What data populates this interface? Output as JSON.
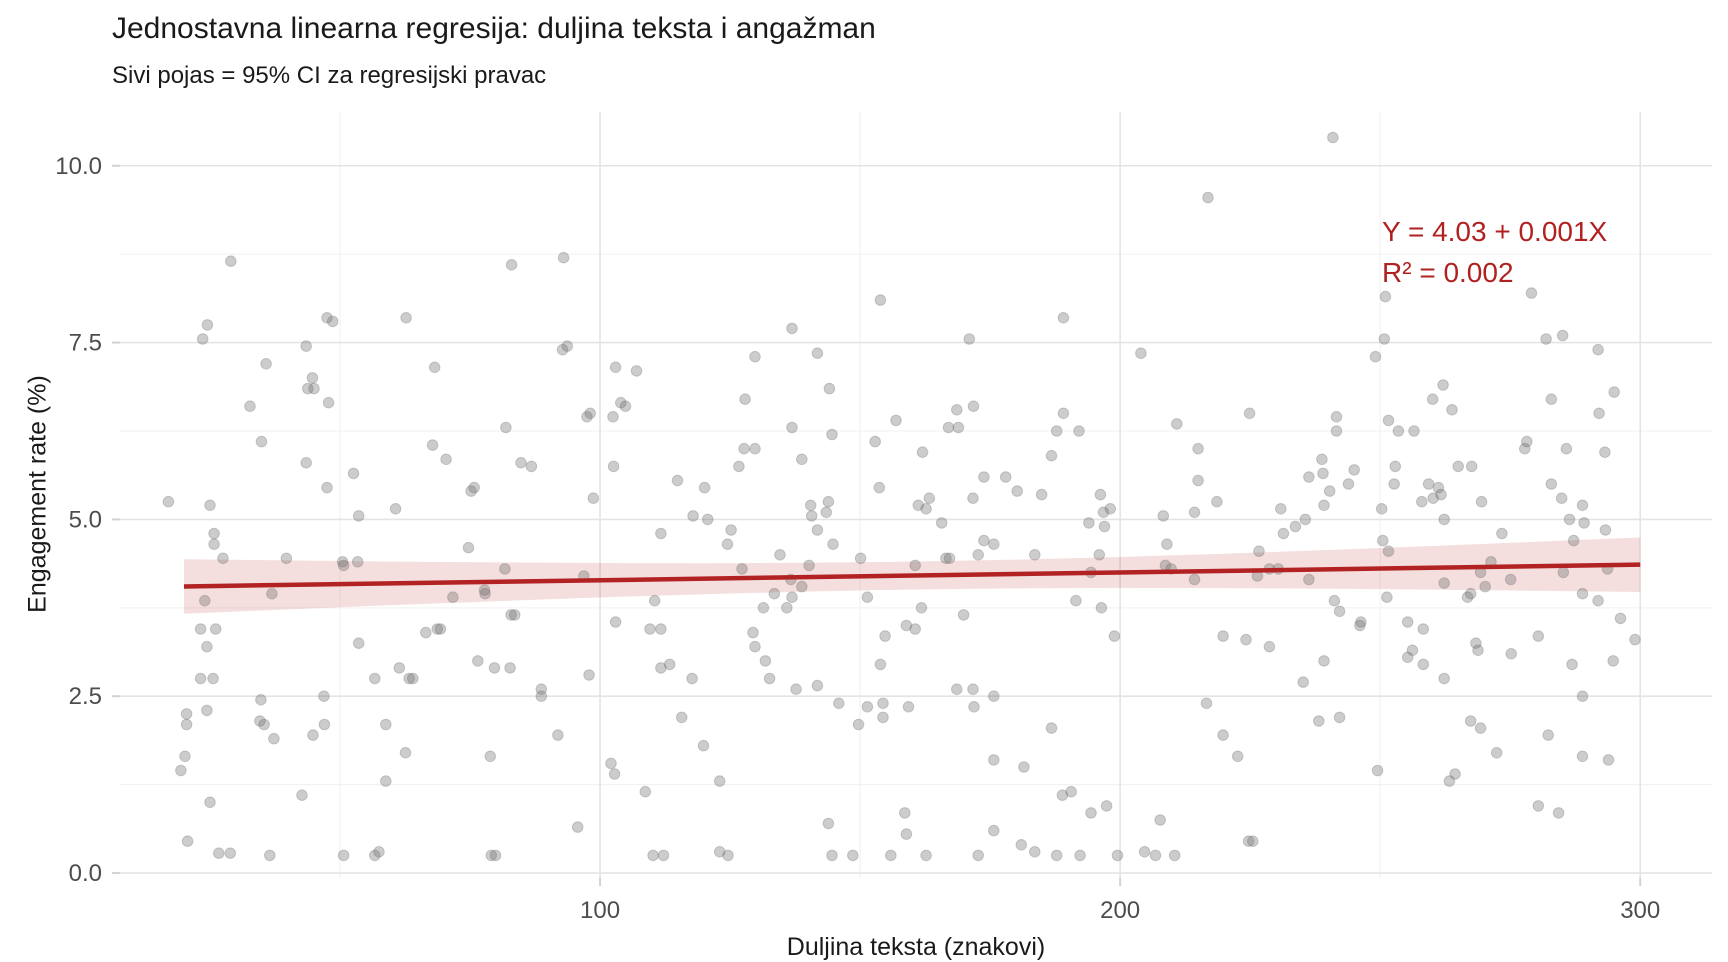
{
  "title": "Jednostavna linearna regresija: duljina teksta i angažman",
  "subtitle": "Sivi pojas = 95% CI za regresijski pravac",
  "annotation": {
    "line1": "Y = 4.03 + 0.001X",
    "line2": "R² = 0.002",
    "color": "#B0211F"
  },
  "axes": {
    "x": {
      "label": "Duljina teksta (znakovi)",
      "ticks": [
        100,
        200,
        300
      ],
      "tick_labels": [
        "100",
        "200",
        "300"
      ],
      "minor": [
        50,
        150,
        250
      ],
      "range": [
        7.7,
        313.8
      ]
    },
    "y": {
      "label": "Engagement rate (%)",
      "ticks": [
        0,
        2.5,
        5,
        7.5,
        10
      ],
      "tick_labels": [
        "0.0",
        "2.5",
        "5.0",
        "7.5",
        "10.0"
      ],
      "minor": [
        1.25,
        3.75,
        6.25,
        8.75
      ],
      "range": [
        -0.07,
        10.76
      ]
    }
  },
  "style": {
    "point_fill": "rgba(110,110,110,0.35)",
    "point_stroke": "rgba(105,105,105,0.3)",
    "point_radius": 5.3,
    "grid_major": "#E4E4E4",
    "grid_minor": "#F0F0F0",
    "tick_color": "#D2D2D2",
    "axis_text_color": "#4D4D4D",
    "axis_text_size": 24
  },
  "chart_data": {
    "type": "scatter",
    "title": "Jednostavna linearna regresija: duljina teksta i angažman",
    "subtitle": "Sivi pojas = 95% CI za regresijski pravac",
    "xlabel": "Duljina teksta (znakovi)",
    "ylabel": "Engagement rate (%)",
    "xlim": [
      0,
      310
    ],
    "ylim": [
      0,
      10.5
    ],
    "grid": true,
    "legend": false,
    "trend": {
      "type": "linear",
      "intercept": 4.03,
      "slope": 0.0011,
      "x_start": 20,
      "x_end": 300,
      "color": "#B22222",
      "width": 4.5,
      "equation": "Y = 4.03 + 0.001X",
      "r_squared": 0.002
    },
    "ci_band": {
      "label": "95% CI",
      "fill": "rgba(178,34,34,0.15)",
      "x": [
        20,
        40,
        60,
        80,
        100,
        120,
        140,
        160,
        180,
        200,
        220,
        240,
        260,
        280,
        300
      ],
      "halfwidth": [
        0.386,
        0.346,
        0.308,
        0.274,
        0.243,
        0.219,
        0.203,
        0.197,
        0.203,
        0.219,
        0.243,
        0.274,
        0.308,
        0.346,
        0.386
      ]
    },
    "points": [
      [
        29,
        8.65
      ],
      [
        83,
        8.6
      ],
      [
        93,
        8.7
      ],
      [
        24.5,
        7.75
      ],
      [
        23.6,
        7.55
      ],
      [
        47.5,
        7.85
      ],
      [
        48.6,
        7.8
      ],
      [
        43.5,
        7.45
      ],
      [
        62.7,
        7.85
      ],
      [
        68.2,
        7.15
      ],
      [
        44.7,
        7.0
      ],
      [
        43.8,
        6.85
      ],
      [
        45,
        6.85
      ],
      [
        35.8,
        7.2
      ],
      [
        47.8,
        6.65
      ],
      [
        32.7,
        6.6
      ],
      [
        34.9,
        6.1
      ],
      [
        43.5,
        5.8
      ],
      [
        52.6,
        5.65
      ],
      [
        67.8,
        6.05
      ],
      [
        70.4,
        5.85
      ],
      [
        81.9,
        6.3
      ],
      [
        84.8,
        5.8
      ],
      [
        86.8,
        5.75
      ],
      [
        92.8,
        7.4
      ],
      [
        93.7,
        7.45
      ],
      [
        97.5,
        6.45
      ],
      [
        98.1,
        6.5
      ],
      [
        103,
        7.15
      ],
      [
        104,
        6.65
      ],
      [
        104.9,
        6.6
      ],
      [
        102.5,
        6.45
      ],
      [
        102.6,
        5.75
      ],
      [
        153.9,
        8.1
      ],
      [
        136.9,
        7.7
      ],
      [
        129.8,
        7.3
      ],
      [
        141.8,
        7.35
      ],
      [
        189.1,
        7.85
      ],
      [
        171,
        7.55
      ],
      [
        204,
        7.35
      ],
      [
        107,
        7.1
      ],
      [
        144.1,
        6.85
      ],
      [
        127.9,
        6.7
      ],
      [
        168.6,
        6.55
      ],
      [
        171.8,
        6.6
      ],
      [
        156.9,
        6.4
      ],
      [
        167,
        6.3
      ],
      [
        168.9,
        6.3
      ],
      [
        189.1,
        6.5
      ],
      [
        187.8,
        6.25
      ],
      [
        192.1,
        6.25
      ],
      [
        136.9,
        6.3
      ],
      [
        144.6,
        6.2
      ],
      [
        152.9,
        6.1
      ],
      [
        127.7,
        6.0
      ],
      [
        129.8,
        6.0
      ],
      [
        138.8,
        5.85
      ],
      [
        126.7,
        5.75
      ],
      [
        162,
        5.95
      ],
      [
        186.8,
        5.9
      ],
      [
        114.9,
        5.55
      ],
      [
        153.7,
        5.45
      ],
      [
        163.3,
        5.3
      ],
      [
        161.2,
        5.2
      ],
      [
        162.7,
        5.15
      ],
      [
        173.8,
        5.6
      ],
      [
        178,
        5.6
      ],
      [
        184.9,
        5.35
      ],
      [
        196.2,
        5.35
      ],
      [
        143.9,
        5.25
      ],
      [
        140.7,
        5.05
      ],
      [
        117.9,
        5.05
      ],
      [
        120.7,
        5.0
      ],
      [
        165.7,
        4.95
      ],
      [
        208.3,
        5.05
      ],
      [
        240.9,
        10.4
      ],
      [
        216.9,
        9.55
      ],
      [
        251,
        8.15
      ],
      [
        279.1,
        8.2
      ],
      [
        250.8,
        7.55
      ],
      [
        281.9,
        7.55
      ],
      [
        285.1,
        7.6
      ],
      [
        249.1,
        7.3
      ],
      [
        291.9,
        7.4
      ],
      [
        262.1,
        6.9
      ],
      [
        260.1,
        6.7
      ],
      [
        263.8,
        6.55
      ],
      [
        282.9,
        6.7
      ],
      [
        224.9,
        6.5
      ],
      [
        210.9,
        6.35
      ],
      [
        251.6,
        6.4
      ],
      [
        241.6,
        6.45
      ],
      [
        241.6,
        6.25
      ],
      [
        253.5,
        6.25
      ],
      [
        256.5,
        6.25
      ],
      [
        292.1,
        6.5
      ],
      [
        278.2,
        6.1
      ],
      [
        277.8,
        6.0
      ],
      [
        215,
        6.0
      ],
      [
        293.2,
        5.95
      ],
      [
        238.8,
        5.85
      ],
      [
        239,
        5.65
      ],
      [
        236.3,
        5.6
      ],
      [
        245,
        5.7
      ],
      [
        243.9,
        5.5
      ],
      [
        215,
        5.55
      ],
      [
        218.6,
        5.25
      ],
      [
        252.9,
        5.75
      ],
      [
        252.7,
        5.5
      ],
      [
        265,
        5.75
      ],
      [
        267.6,
        5.75
      ],
      [
        259.3,
        5.5
      ],
      [
        261.2,
        5.45
      ],
      [
        261.7,
        5.35
      ],
      [
        269.5,
        5.25
      ],
      [
        258,
        5.25
      ],
      [
        260.2,
        5.3
      ],
      [
        282.9,
        5.5
      ],
      [
        284.9,
        5.3
      ],
      [
        288.9,
        5.2
      ],
      [
        230.9,
        5.15
      ],
      [
        239.2,
        5.2
      ],
      [
        250.3,
        5.15
      ],
      [
        295,
        6.8
      ],
      [
        285.8,
        6.0
      ],
      [
        47.5,
        5.45
      ],
      [
        75.2,
        5.4
      ],
      [
        75.8,
        5.45
      ],
      [
        98.7,
        5.3
      ],
      [
        60.7,
        5.15
      ],
      [
        53.6,
        5.05
      ],
      [
        25.8,
        4.8
      ],
      [
        25.8,
        4.65
      ],
      [
        111.7,
        4.8
      ],
      [
        74.7,
        4.6
      ],
      [
        27.5,
        4.45
      ],
      [
        39.7,
        4.45
      ],
      [
        50.5,
        4.4
      ],
      [
        53.4,
        4.4
      ],
      [
        50.7,
        4.35
      ],
      [
        81.7,
        4.3
      ],
      [
        96.9,
        4.2
      ],
      [
        36.9,
        3.95
      ],
      [
        71.7,
        3.9
      ],
      [
        77.8,
        4.0
      ],
      [
        77.9,
        3.95
      ],
      [
        82.9,
        3.65
      ],
      [
        83.6,
        3.65
      ],
      [
        103,
        3.55
      ],
      [
        111.7,
        3.45
      ],
      [
        66.5,
        3.4
      ],
      [
        68.7,
        3.45
      ],
      [
        69.3,
        3.45
      ],
      [
        53.6,
        3.25
      ],
      [
        88.7,
        2.6
      ],
      [
        88.7,
        2.5
      ],
      [
        24.4,
        3.2
      ],
      [
        23.2,
        2.75
      ],
      [
        25.6,
        2.75
      ],
      [
        56.7,
        2.75
      ],
      [
        61.4,
        2.9
      ],
      [
        63.3,
        2.75
      ],
      [
        64,
        2.75
      ],
      [
        76.5,
        3.0
      ],
      [
        79.7,
        2.9
      ],
      [
        82.7,
        2.9
      ],
      [
        97.9,
        2.8
      ],
      [
        113.4,
        2.95
      ],
      [
        34.8,
        2.45
      ],
      [
        46.9,
        2.5
      ],
      [
        20.5,
        2.25
      ],
      [
        20.5,
        2.1
      ],
      [
        24.4,
        2.3
      ],
      [
        34.6,
        2.15
      ],
      [
        35.4,
        2.1
      ],
      [
        37.3,
        1.9
      ],
      [
        44.8,
        1.95
      ],
      [
        47,
        2.1
      ],
      [
        58.8,
        2.1
      ],
      [
        62.6,
        1.7
      ],
      [
        58.8,
        1.3
      ],
      [
        78.9,
        1.65
      ],
      [
        91.9,
        1.95
      ],
      [
        102.1,
        1.55
      ],
      [
        102.8,
        1.4
      ],
      [
        42.7,
        1.1
      ],
      [
        108.7,
        1.15
      ],
      [
        95.7,
        0.65
      ],
      [
        20.7,
        0.45
      ],
      [
        26.7,
        0.28
      ],
      [
        28.9,
        0.28
      ],
      [
        36.5,
        0.25
      ],
      [
        50.7,
        0.25
      ],
      [
        56.7,
        0.25
      ],
      [
        57.5,
        0.3
      ],
      [
        79.1,
        0.25
      ],
      [
        79.9,
        0.25
      ],
      [
        112.2,
        0.25
      ],
      [
        120.1,
        5.45
      ],
      [
        140.5,
        5.2
      ],
      [
        143.5,
        5.1
      ],
      [
        171.7,
        5.3
      ],
      [
        180.2,
        5.4
      ],
      [
        125.2,
        4.85
      ],
      [
        124.5,
        4.65
      ],
      [
        141.8,
        4.85
      ],
      [
        144.8,
        4.65
      ],
      [
        173.8,
        4.7
      ],
      [
        175.7,
        4.65
      ],
      [
        194,
        4.95
      ],
      [
        196.8,
        5.1
      ],
      [
        198.1,
        5.15
      ],
      [
        197,
        4.9
      ],
      [
        209,
        4.65
      ],
      [
        134.6,
        4.5
      ],
      [
        150.1,
        4.45
      ],
      [
        166.5,
        4.45
      ],
      [
        167.2,
        4.45
      ],
      [
        172.7,
        4.5
      ],
      [
        183.6,
        4.5
      ],
      [
        196,
        4.5
      ],
      [
        127.3,
        4.3
      ],
      [
        140.2,
        4.35
      ],
      [
        160.6,
        4.35
      ],
      [
        194.4,
        4.25
      ],
      [
        208.7,
        4.35
      ],
      [
        209.8,
        4.3
      ],
      [
        136.7,
        4.15
      ],
      [
        138.8,
        4.05
      ],
      [
        133.5,
        3.95
      ],
      [
        136.9,
        3.9
      ],
      [
        135.9,
        3.75
      ],
      [
        131.4,
        3.75
      ],
      [
        151.4,
        3.9
      ],
      [
        110.5,
        3.85
      ],
      [
        161.8,
        3.75
      ],
      [
        169.9,
        3.65
      ],
      [
        191.5,
        3.85
      ],
      [
        196.4,
        3.75
      ],
      [
        198.9,
        3.35
      ],
      [
        109.6,
        3.45
      ],
      [
        129.4,
        3.4
      ],
      [
        129.8,
        3.2
      ],
      [
        131.8,
        3.0
      ],
      [
        158.9,
        3.5
      ],
      [
        160.6,
        3.45
      ],
      [
        154.8,
        3.35
      ],
      [
        153.9,
        2.95
      ],
      [
        111.7,
        2.9
      ],
      [
        117.7,
        2.75
      ],
      [
        132.6,
        2.75
      ],
      [
        137.7,
        2.6
      ],
      [
        141.8,
        2.65
      ],
      [
        145.9,
        2.4
      ],
      [
        151.4,
        2.35
      ],
      [
        154.4,
        2.4
      ],
      [
        154.4,
        2.2
      ],
      [
        159.3,
        2.35
      ],
      [
        149.7,
        2.1
      ],
      [
        168.6,
        2.6
      ],
      [
        171.7,
        2.6
      ],
      [
        171.9,
        2.35
      ],
      [
        175.7,
        2.5
      ],
      [
        115.7,
        2.2
      ],
      [
        119.9,
        1.8
      ],
      [
        123,
        1.3
      ],
      [
        186.8,
        2.05
      ],
      [
        175.7,
        1.6
      ],
      [
        181.5,
        1.5
      ],
      [
        188.9,
        1.1
      ],
      [
        190.6,
        1.15
      ],
      [
        194.4,
        0.85
      ],
      [
        197.4,
        0.95
      ],
      [
        158.6,
        0.85
      ],
      [
        158.9,
        0.55
      ],
      [
        143.9,
        0.7
      ],
      [
        175.7,
        0.6
      ],
      [
        181,
        0.4
      ],
      [
        183.6,
        0.3
      ],
      [
        123,
        0.3
      ],
      [
        124.6,
        0.25
      ],
      [
        110.2,
        0.25
      ],
      [
        144.6,
        0.25
      ],
      [
        148.6,
        0.25
      ],
      [
        155.9,
        0.25
      ],
      [
        162.7,
        0.25
      ],
      [
        172.7,
        0.25
      ],
      [
        187.8,
        0.25
      ],
      [
        192.3,
        0.25
      ],
      [
        199.5,
        0.25
      ],
      [
        204.7,
        0.3
      ],
      [
        206.8,
        0.25
      ],
      [
        210.5,
        0.25
      ],
      [
        207.7,
        0.75
      ],
      [
        240.3,
        5.4
      ],
      [
        214.3,
        5.1
      ],
      [
        235.6,
        5.0
      ],
      [
        233.7,
        4.9
      ],
      [
        231.4,
        4.8
      ],
      [
        262.3,
        5.0
      ],
      [
        286.4,
        5.0
      ],
      [
        289.2,
        4.95
      ],
      [
        293.3,
        4.85
      ],
      [
        273.4,
        4.8
      ],
      [
        287.2,
        4.7
      ],
      [
        250.5,
        4.7
      ],
      [
        251.6,
        4.55
      ],
      [
        226.7,
        4.55
      ],
      [
        226.4,
        4.2
      ],
      [
        228.7,
        4.3
      ],
      [
        230.4,
        4.3
      ],
      [
        214.3,
        4.15
      ],
      [
        236.3,
        4.15
      ],
      [
        271.3,
        4.4
      ],
      [
        269.3,
        4.25
      ],
      [
        270.2,
        4.05
      ],
      [
        275.1,
        4.15
      ],
      [
        285.2,
        4.25
      ],
      [
        293.7,
        4.3
      ],
      [
        262.3,
        4.1
      ],
      [
        267.4,
        3.95
      ],
      [
        266.8,
        3.9
      ],
      [
        288.9,
        3.95
      ],
      [
        291.9,
        3.85
      ],
      [
        296.2,
        3.6
      ],
      [
        251.3,
        3.9
      ],
      [
        241.2,
        3.85
      ],
      [
        242.2,
        3.7
      ],
      [
        246.3,
        3.55
      ],
      [
        246.1,
        3.5
      ],
      [
        255.3,
        3.55
      ],
      [
        258.3,
        3.45
      ],
      [
        256.2,
        3.15
      ],
      [
        255.3,
        3.05
      ],
      [
        258.3,
        2.95
      ],
      [
        262.3,
        2.75
      ],
      [
        219.8,
        3.35
      ],
      [
        224.2,
        3.3
      ],
      [
        228.7,
        3.2
      ],
      [
        239.2,
        3.0
      ],
      [
        235.2,
        2.7
      ],
      [
        268.4,
        3.25
      ],
      [
        268.8,
        3.15
      ],
      [
        275.2,
        3.1
      ],
      [
        280.4,
        3.35
      ],
      [
        286.9,
        2.95
      ],
      [
        294.8,
        3.0
      ],
      [
        288.9,
        2.5
      ],
      [
        216.6,
        2.4
      ],
      [
        219.8,
        1.95
      ],
      [
        222.6,
        1.65
      ],
      [
        238.2,
        2.15
      ],
      [
        242.2,
        2.2
      ],
      [
        267.4,
        2.15
      ],
      [
        269.3,
        2.05
      ],
      [
        272.4,
        1.7
      ],
      [
        282.3,
        1.95
      ],
      [
        288.9,
        1.65
      ],
      [
        293.9,
        1.6
      ],
      [
        249.5,
        1.45
      ],
      [
        264.4,
        1.4
      ],
      [
        263.3,
        1.3
      ],
      [
        280.4,
        0.95
      ],
      [
        284.3,
        0.85
      ],
      [
        224.7,
        0.45
      ],
      [
        225.5,
        0.45
      ],
      [
        299,
        3.3
      ],
      [
        17,
        5.25
      ],
      [
        25,
        5.2
      ],
      [
        24,
        3.85
      ],
      [
        23.2,
        3.45
      ],
      [
        26.1,
        3.45
      ],
      [
        20.2,
        1.65
      ],
      [
        19.4,
        1.45
      ],
      [
        25,
        1.0
      ]
    ]
  }
}
